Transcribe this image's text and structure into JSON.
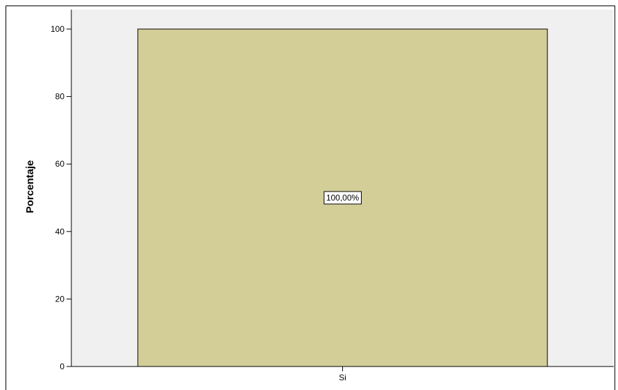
{
  "chart_data": {
    "type": "bar",
    "categories": [
      "Si"
    ],
    "values": [
      100
    ],
    "data_labels": [
      "100,00%"
    ],
    "title": "",
    "xlabel": "",
    "ylabel": "Porcentaje",
    "ylim": [
      0,
      100
    ],
    "yticks": [
      0,
      20,
      40,
      60,
      80,
      100
    ],
    "grid": false,
    "colors": {
      "bar_fill": "#d3cd98",
      "plot_background": "#f0f0f0",
      "page_background": "#ffffff",
      "axis": "#000000"
    }
  }
}
